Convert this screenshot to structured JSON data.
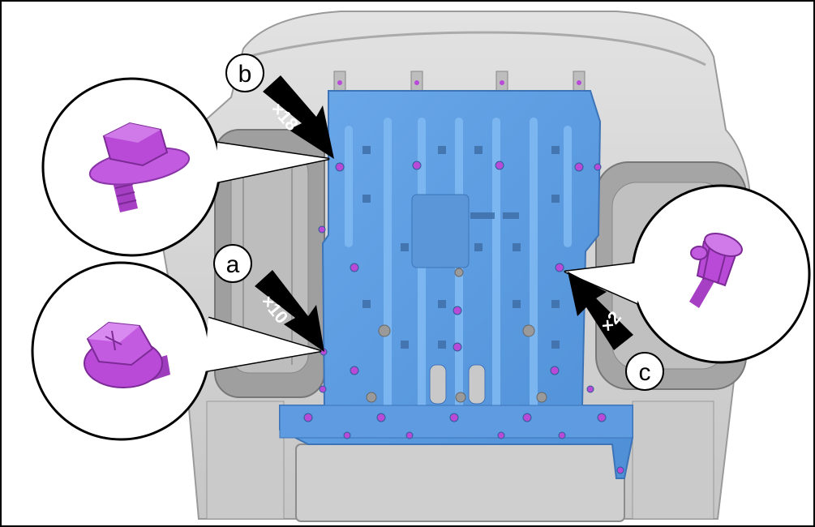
{
  "callouts": {
    "a": {
      "letter": "a",
      "quantity": "×10",
      "part": "flange-bolt"
    },
    "b": {
      "letter": "b",
      "quantity": "×18",
      "part": "flange-bolt"
    },
    "c": {
      "letter": "c",
      "quantity": "×2",
      "part": "push-clip"
    }
  },
  "colors": {
    "underbody_shield": "#5b9be0",
    "shield_edge": "#3d74b8",
    "fastener": "#b94ad8",
    "vehicle_body": "#d4d4d4",
    "frame": "#000000"
  }
}
